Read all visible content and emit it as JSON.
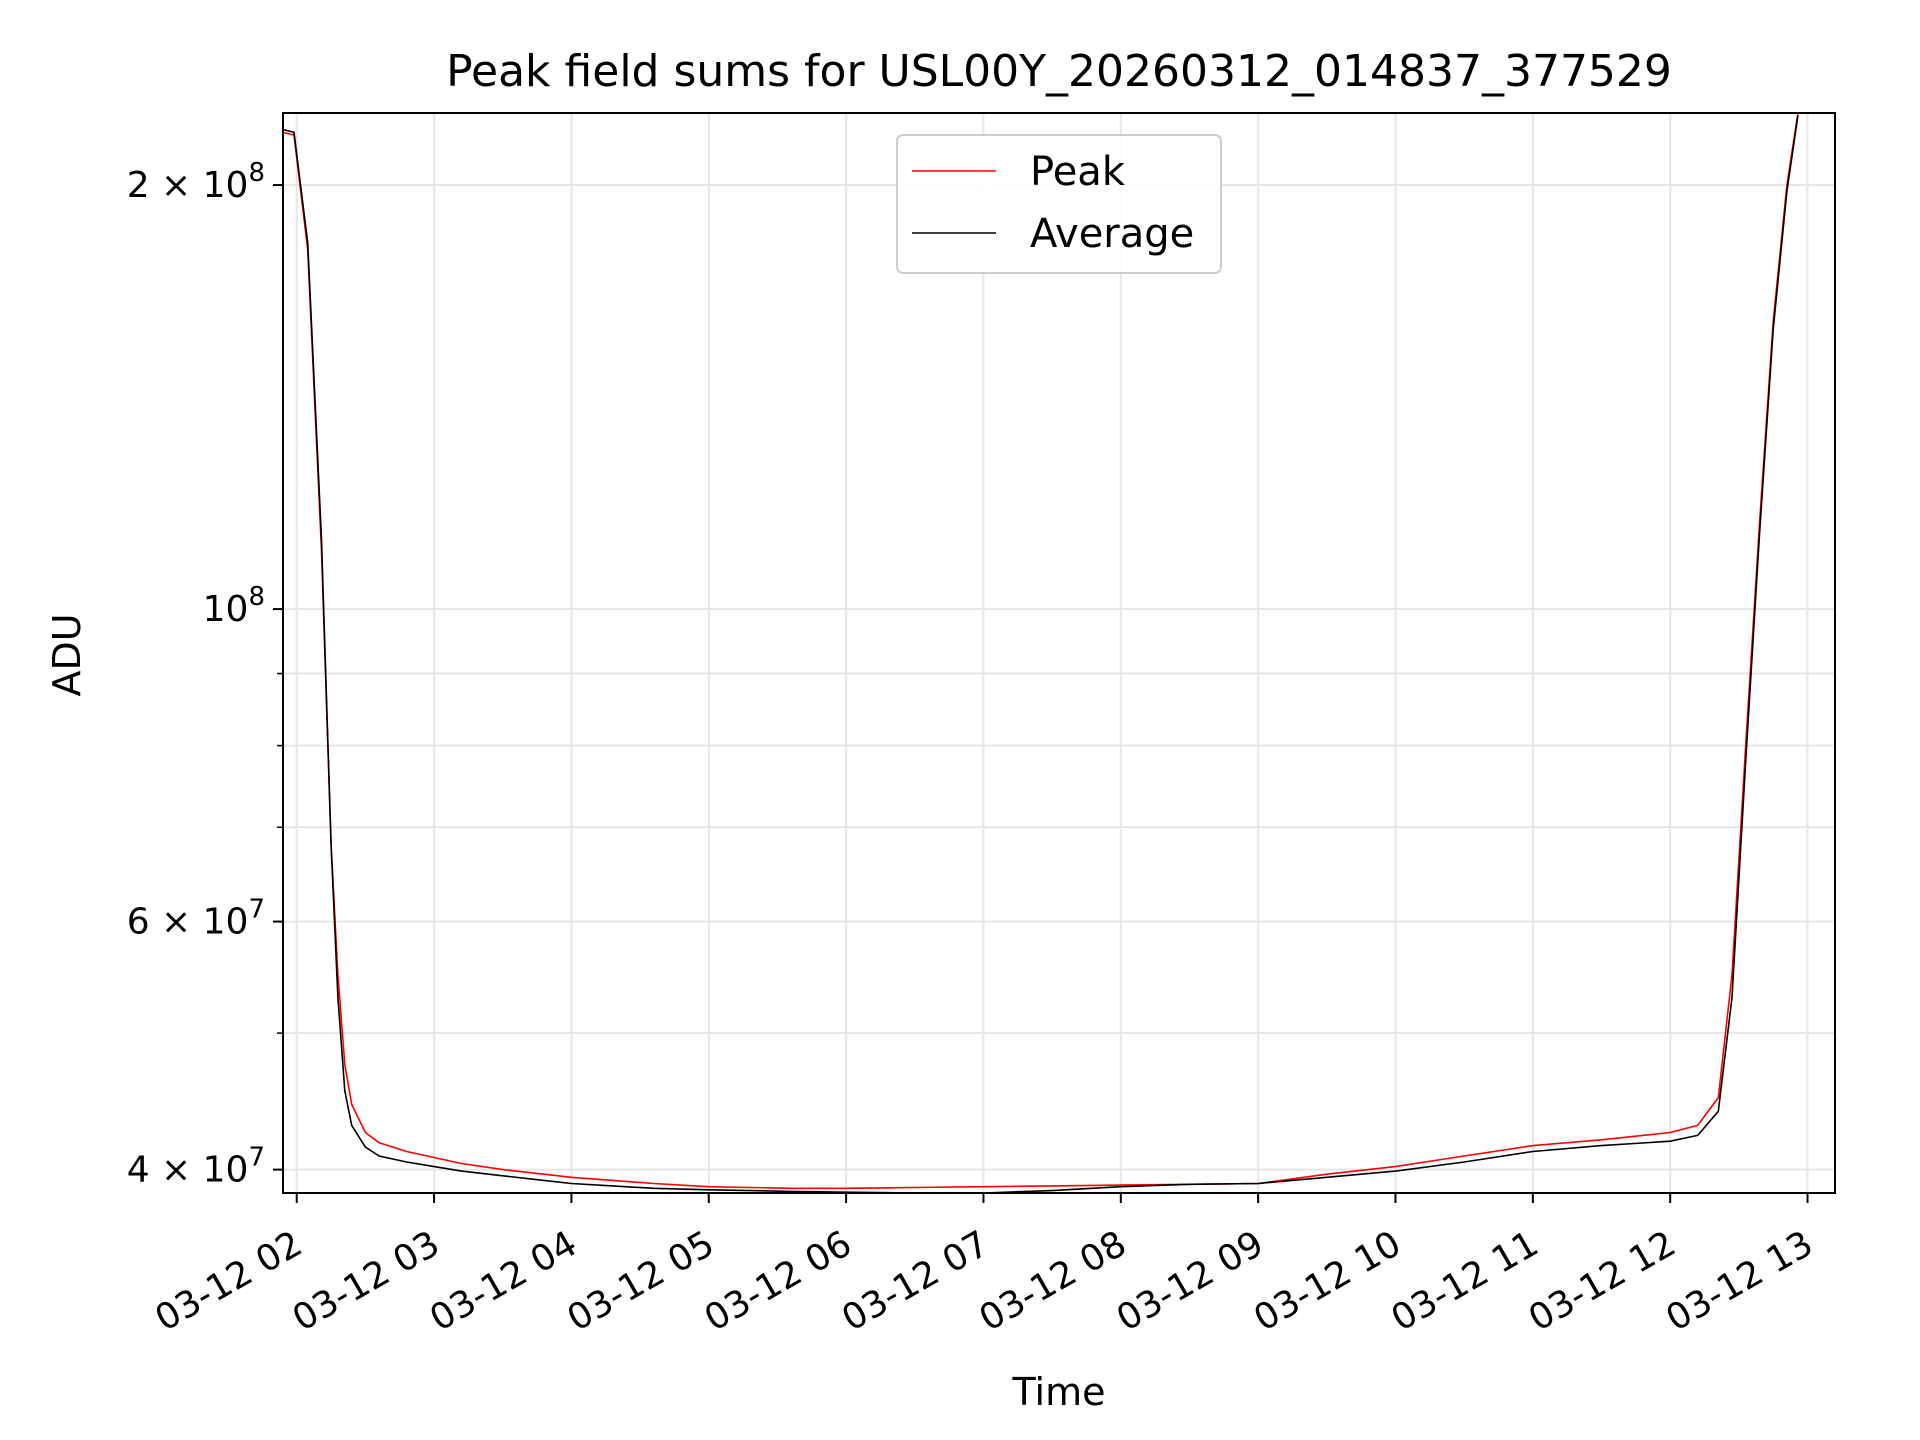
{
  "chart_data": {
    "type": "line",
    "title": "Peak field sums for USL00Y_20260312_014837_377529",
    "xlabel": "Time",
    "ylabel": "ADU",
    "yscale": "log",
    "grid": true,
    "legend_position": "top-center",
    "xlim_hours": [
      1.9,
      13.2
    ],
    "ylim": [
      38500000,
      225000000
    ],
    "x_ticks": [
      {
        "value": 2,
        "label": "03-12 02"
      },
      {
        "value": 3,
        "label": "03-12 03"
      },
      {
        "value": 4,
        "label": "03-12 04"
      },
      {
        "value": 5,
        "label": "03-12 05"
      },
      {
        "value": 6,
        "label": "03-12 06"
      },
      {
        "value": 7,
        "label": "03-12 07"
      },
      {
        "value": 8,
        "label": "03-12 08"
      },
      {
        "value": 9,
        "label": "03-12 09"
      },
      {
        "value": 10,
        "label": "03-12 10"
      },
      {
        "value": 11,
        "label": "03-12 11"
      },
      {
        "value": 12,
        "label": "03-12 12"
      },
      {
        "value": 13,
        "label": "03-12 13"
      }
    ],
    "y_major_ticks": [
      {
        "value": 40000000,
        "mantissa": "4 × 10",
        "exp": "7"
      },
      {
        "value": 60000000,
        "mantissa": "6 × 10",
        "exp": "7"
      },
      {
        "value": 100000000,
        "mantissa": "10",
        "exp": "8"
      },
      {
        "value": 200000000,
        "mantissa": "2 × 10",
        "exp": "8"
      }
    ],
    "y_minor_ticks": [
      50000000,
      70000000,
      80000000,
      90000000
    ],
    "series": [
      {
        "name": "Peak",
        "color": "#ff0000",
        "x": [
          1.9,
          1.98,
          2.08,
          2.18,
          2.25,
          2.3,
          2.35,
          2.4,
          2.5,
          2.6,
          2.8,
          3.0,
          3.2,
          3.5,
          3.8,
          4.0,
          4.3,
          4.6,
          5.0,
          5.3,
          5.6,
          6.0,
          6.5,
          7.0,
          7.5,
          8.0,
          8.5,
          9.0,
          9.5,
          10.0,
          10.5,
          11.0,
          11.5,
          12.0,
          12.2,
          12.35,
          12.45,
          12.55,
          12.65,
          12.75,
          12.85,
          12.93
        ],
        "values": [
          218000000,
          217000000,
          180000000,
          110000000,
          68000000,
          55000000,
          47500000,
          44500000,
          42500000,
          41800000,
          41200000,
          40800000,
          40400000,
          40000000,
          39700000,
          39500000,
          39300000,
          39100000,
          38900000,
          38850000,
          38800000,
          38800000,
          38850000,
          38900000,
          38950000,
          39000000,
          39050000,
          39100000,
          39700000,
          40200000,
          40900000,
          41600000,
          42000000,
          42500000,
          43000000,
          45000000,
          55000000,
          80000000,
          115000000,
          160000000,
          200000000,
          225000000
        ]
      },
      {
        "name": "Average",
        "color": "#000000",
        "x": [
          1.9,
          1.98,
          2.08,
          2.18,
          2.25,
          2.3,
          2.35,
          2.4,
          2.5,
          2.6,
          2.8,
          3.0,
          3.2,
          3.5,
          3.8,
          4.0,
          4.3,
          4.6,
          5.0,
          5.3,
          5.6,
          6.0,
          6.5,
          7.0,
          7.5,
          8.0,
          8.5,
          9.0,
          9.5,
          10.0,
          10.5,
          11.0,
          11.5,
          12.0,
          12.2,
          12.35,
          12.45,
          12.55,
          12.65,
          12.75,
          12.85,
          12.93
        ],
        "values": [
          219000000,
          218000000,
          182000000,
          112000000,
          68000000,
          53000000,
          45500000,
          43000000,
          41500000,
          40900000,
          40500000,
          40200000,
          39900000,
          39600000,
          39300000,
          39100000,
          38950000,
          38800000,
          38700000,
          38650000,
          38600000,
          38550000,
          38500000,
          38500000,
          38650000,
          38900000,
          39050000,
          39100000,
          39500000,
          39900000,
          40500000,
          41200000,
          41600000,
          41900000,
          42300000,
          44000000,
          53000000,
          78000000,
          113000000,
          158000000,
          198000000,
          224000000
        ]
      }
    ]
  }
}
